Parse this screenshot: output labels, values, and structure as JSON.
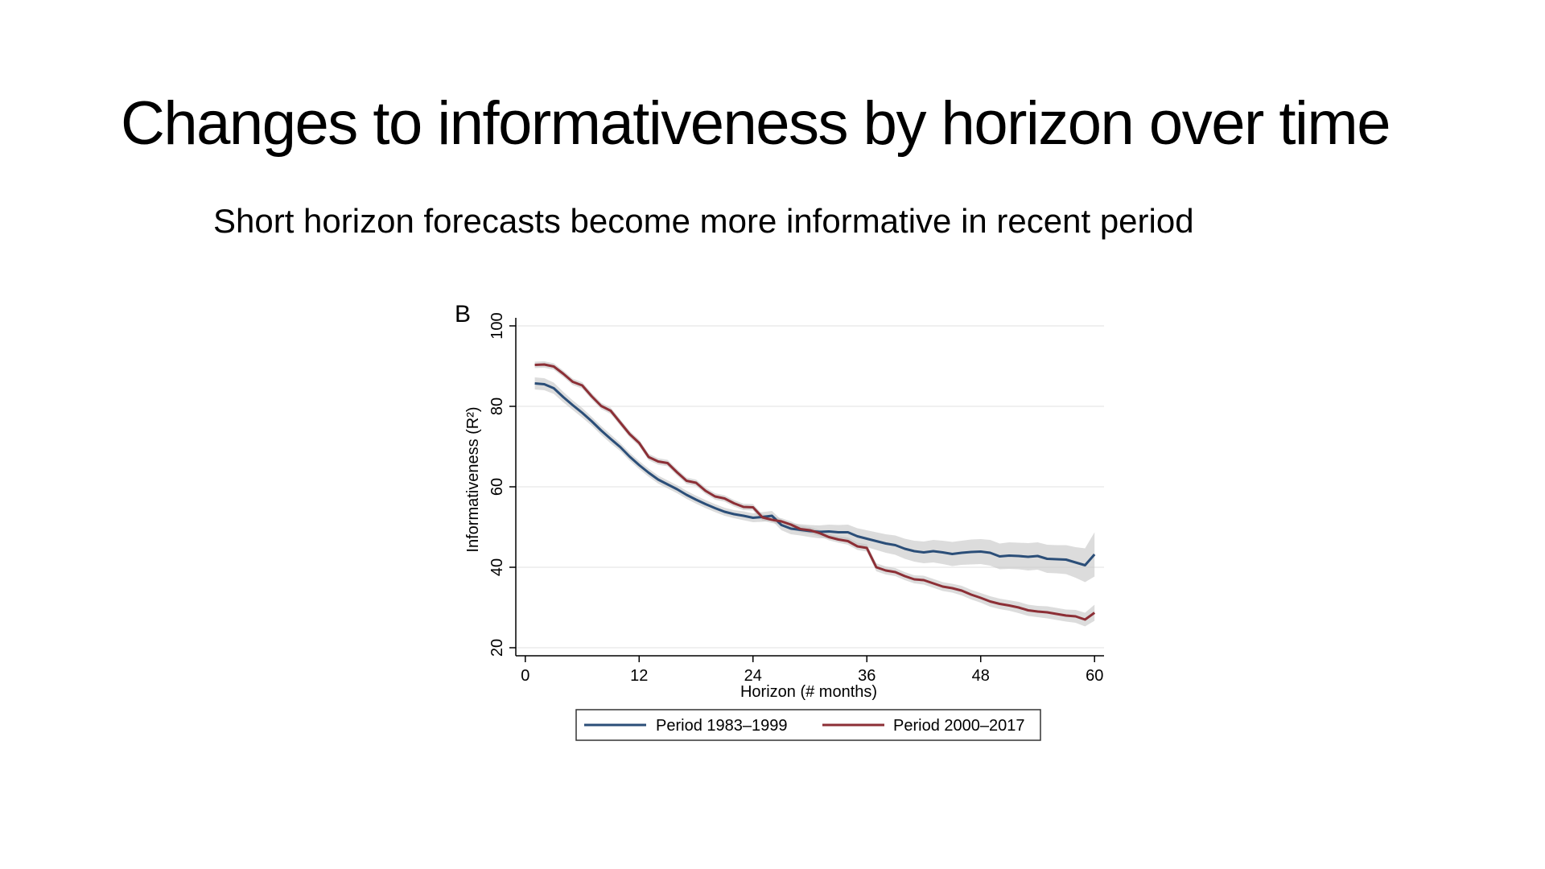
{
  "slide": {
    "title": "Changes to informativeness by horizon over time",
    "subtitle": "Short horizon forecasts become more informative in recent period"
  },
  "chart_data": {
    "type": "line",
    "panel_label": "B",
    "xlabel": "Horizon (# months)",
    "ylabel": "Informativeness (R²)",
    "xlim": [
      -1,
      61
    ],
    "ylim": [
      18,
      102
    ],
    "x_ticks": [
      0,
      12,
      24,
      36,
      48,
      60
    ],
    "y_ticks": [
      20,
      40,
      60,
      80,
      100
    ],
    "grid": true,
    "legend_position": "bottom",
    "colors": {
      "series1": "#2b4e78",
      "series2": "#8c2f36",
      "band": "#bfbfbf",
      "grid": "#ececec",
      "axis": "#000000"
    },
    "x": [
      1,
      2,
      3,
      4,
      5,
      6,
      7,
      8,
      9,
      10,
      11,
      12,
      13,
      14,
      15,
      16,
      17,
      18,
      19,
      20,
      21,
      22,
      23,
      24,
      25,
      26,
      27,
      28,
      29,
      30,
      31,
      32,
      33,
      34,
      35,
      36,
      37,
      38,
      39,
      40,
      41,
      42,
      43,
      44,
      45,
      46,
      47,
      48,
      49,
      50,
      51,
      52,
      53,
      54,
      55,
      56,
      57,
      58,
      59,
      60
    ],
    "series": [
      {
        "name": "Period 1983–1999",
        "values": [
          85.7,
          85.5,
          84.5,
          82.3,
          80.3,
          78.4,
          76.3,
          74.0,
          71.9,
          69.9,
          67.5,
          65.4,
          63.5,
          61.8,
          60.6,
          59.4,
          58.0,
          56.8,
          55.7,
          54.7,
          53.8,
          53.2,
          52.8,
          52.3,
          52.5,
          52.8,
          50.5,
          49.6,
          49.3,
          49.0,
          48.8,
          48.9,
          48.7,
          48.7,
          47.7,
          47.1,
          46.5,
          45.9,
          45.5,
          44.6,
          44.0,
          43.7,
          44.0,
          43.7,
          43.3,
          43.6,
          43.8,
          43.9,
          43.6,
          42.7,
          42.9,
          42.8,
          42.6,
          42.8,
          42.1,
          42.0,
          41.9,
          41.2,
          40.5,
          43.2
        ],
        "band_halfwidth": [
          1.5,
          1.5,
          1.4,
          1.3,
          1.2,
          1.2,
          1.1,
          1.1,
          1.1,
          1.0,
          1.0,
          1.0,
          1.0,
          1.0,
          1.0,
          1.0,
          1.0,
          1.0,
          1.0,
          1.0,
          1.0,
          1.0,
          1.1,
          1.1,
          1.2,
          1.2,
          1.3,
          1.4,
          1.4,
          1.5,
          1.6,
          1.7,
          1.8,
          1.9,
          2.0,
          2.1,
          2.2,
          2.3,
          2.4,
          2.5,
          2.6,
          2.7,
          2.8,
          2.9,
          3.0,
          3.0,
          3.1,
          3.1,
          3.2,
          3.2,
          3.3,
          3.3,
          3.4,
          3.4,
          3.5,
          3.5,
          3.6,
          3.8,
          4.2,
          5.5
        ]
      },
      {
        "name": "Period 2000–2017",
        "values": [
          90.3,
          90.4,
          89.9,
          88.1,
          86.1,
          85.2,
          82.5,
          80.1,
          78.9,
          76.0,
          73.1,
          70.9,
          67.4,
          66.3,
          65.9,
          63.6,
          61.5,
          61.0,
          59.0,
          57.6,
          57.1,
          55.9,
          55.0,
          54.9,
          52.4,
          51.8,
          51.4,
          50.6,
          49.5,
          49.2,
          48.5,
          47.5,
          46.9,
          46.5,
          45.2,
          44.8,
          40.0,
          39.2,
          38.8,
          37.8,
          37.0,
          36.8,
          36.0,
          35.2,
          34.8,
          34.2,
          33.2,
          32.4,
          31.5,
          30.9,
          30.5,
          30.0,
          29.3,
          29.0,
          28.8,
          28.4,
          28.0,
          27.8,
          27.0,
          28.7
        ],
        "band_halfwidth": [
          0.8,
          0.8,
          0.8,
          0.8,
          0.8,
          0.8,
          0.8,
          0.8,
          0.8,
          0.8,
          0.8,
          0.8,
          0.8,
          0.8,
          0.8,
          0.8,
          0.8,
          0.8,
          0.8,
          0.8,
          0.8,
          0.8,
          0.8,
          0.8,
          0.8,
          0.8,
          0.8,
          0.8,
          0.8,
          0.8,
          0.8,
          0.8,
          0.8,
          0.9,
          0.9,
          0.9,
          1.0,
          1.0,
          1.0,
          1.0,
          1.0,
          1.1,
          1.1,
          1.1,
          1.1,
          1.2,
          1.2,
          1.2,
          1.3,
          1.3,
          1.3,
          1.4,
          1.4,
          1.4,
          1.5,
          1.5,
          1.5,
          1.6,
          1.7,
          2.0
        ]
      }
    ]
  }
}
